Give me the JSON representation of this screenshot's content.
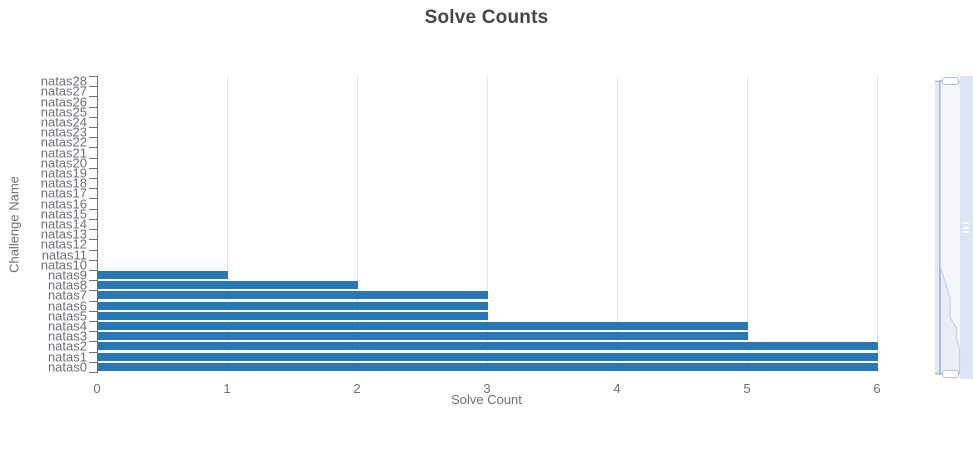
{
  "title": "Solve Counts",
  "axes": {
    "x_title": "Solve Count",
    "y_title": "Challenge Name",
    "x_tick_labels": [
      "0",
      "1",
      "2",
      "3",
      "4",
      "5",
      "6"
    ]
  },
  "chart_data": {
    "type": "bar",
    "orientation": "horizontal",
    "title": "Solve Counts",
    "xlabel": "Solve Count",
    "ylabel": "Challenge Name",
    "xlim": [
      0,
      6
    ],
    "grid": true,
    "legend": false,
    "categories": [
      "natas0",
      "natas1",
      "natas2",
      "natas3",
      "natas4",
      "natas5",
      "natas6",
      "natas7",
      "natas8",
      "natas9",
      "natas10",
      "natas11",
      "natas12",
      "natas13",
      "natas14",
      "natas15",
      "natas16",
      "natas17",
      "natas18",
      "natas19",
      "natas20",
      "natas21",
      "natas22",
      "natas23",
      "natas24",
      "natas25",
      "natas26",
      "natas27",
      "natas28"
    ],
    "values": [
      6,
      6,
      6,
      5,
      5,
      3,
      3,
      3,
      2,
      1,
      0,
      0,
      0,
      0,
      0,
      0,
      0,
      0,
      0,
      0,
      0,
      0,
      0,
      0,
      0,
      0,
      0,
      0,
      0
    ],
    "category_screen_order": "natas28 at top, natas0 at bottom"
  },
  "colors": {
    "bar": "#2878b5",
    "gridline": "#e2e7f3",
    "axis_text": "#6e7079",
    "title_text": "#464646",
    "slider_fill": "#dde4f3",
    "slider_border": "#aab8d8",
    "slider_shadow_line": "#c6d2ea"
  },
  "range_slider": {
    "present": true,
    "orientation": "vertical",
    "selection": "full range"
  }
}
